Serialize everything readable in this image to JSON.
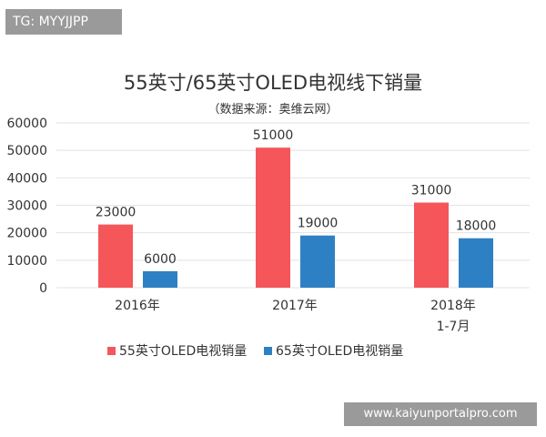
{
  "corner_tag": "TG: MYYJJPP",
  "watermark": "www.kaiyunportalpro.com",
  "colors": {
    "series_55": "#f4565a",
    "series_65": "#2e80c4",
    "text": "#333333",
    "grid": "#e3e3e3"
  },
  "chart_data": {
    "type": "bar",
    "title": "55英寸/65英寸OLED电视线下销量",
    "subtitle": "（数据来源：奥维云网）",
    "categories": [
      "2016年",
      "2017年",
      "2018年\n1-7月"
    ],
    "series": [
      {
        "name": "55英寸OLED电视销量",
        "values": [
          23000,
          51000,
          31000
        ]
      },
      {
        "name": "65英寸OLED电视销量",
        "values": [
          6000,
          19000,
          18000
        ]
      }
    ],
    "ylim": [
      0,
      60000
    ],
    "yticks": [
      "0",
      "10000",
      "20000",
      "30000",
      "40000",
      "50000",
      "60000"
    ],
    "data_labels": [
      [
        "23000",
        "51000",
        "31000"
      ],
      [
        "6000",
        "19000",
        "18000"
      ]
    ],
    "grid": true,
    "legend": "bottom"
  }
}
